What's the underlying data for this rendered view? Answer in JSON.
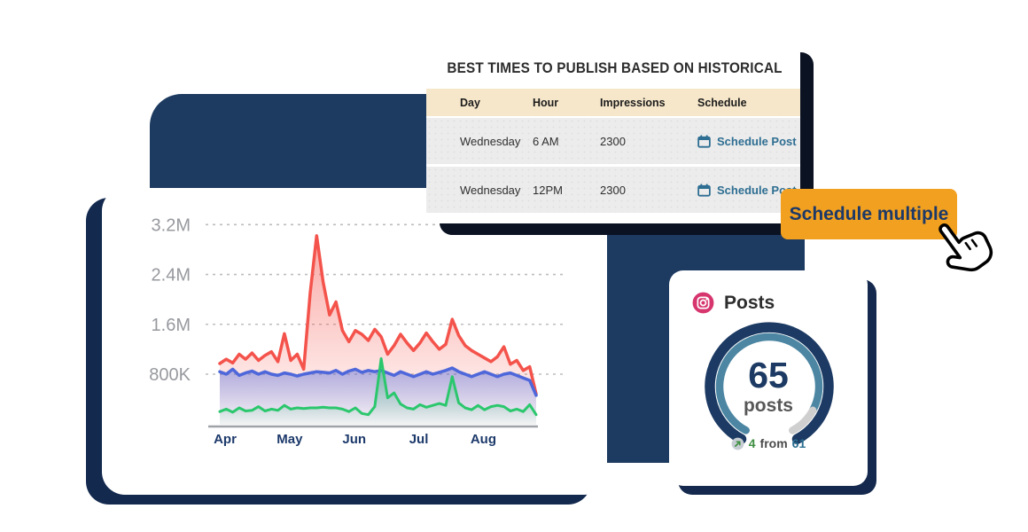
{
  "top_card": {
    "title": "BEST TIMES TO PUBLISH BASED ON HISTORICAL",
    "table": {
      "headers": [
        "Day",
        "Hour",
        "Impressions",
        "Schedule"
      ],
      "rows": [
        {
          "day": "Wednesday",
          "hour": "6 AM",
          "impressions": "2300",
          "action": "Schedule Post"
        },
        {
          "day": "Wednesday",
          "hour": "12PM",
          "impressions": "2300",
          "action": "Schedule Post"
        }
      ]
    }
  },
  "schedule_button": {
    "label": "Schedule multiple"
  },
  "posts_card": {
    "title": "Posts",
    "icon": "instagram-icon",
    "gauge": {
      "value": "65",
      "unit": "posts",
      "progress_ratio": 0.89
    },
    "stats": {
      "delta": "4",
      "connector": "from",
      "total": "61"
    }
  },
  "chart_data": {
    "type": "area",
    "unit": "impressions (millions)",
    "x_ticks": [
      "Apr",
      "May",
      "Jun",
      "Jul",
      "Aug"
    ],
    "y_ticks": [
      {
        "label": "3.2M",
        "value": 3.2
      },
      {
        "label": "2.4M",
        "value": 2.4
      },
      {
        "label": "1.6M",
        "value": 1.6
      },
      {
        "label": "800K",
        "value": 0.8
      }
    ],
    "ylim": [
      0,
      3.5
    ],
    "grid": true,
    "legend": false,
    "series": [
      {
        "name": "red-series",
        "color": "#f4534b",
        "fill_opacity": 0.5,
        "values": [
          0.97,
          1.04,
          0.98,
          1.12,
          1.04,
          1.14,
          1.02,
          1.1,
          1.16,
          1.0,
          1.45,
          1.02,
          1.12,
          0.88,
          2.1,
          3.02,
          2.28,
          1.75,
          1.96,
          1.5,
          1.32,
          1.5,
          1.44,
          1.34,
          1.52,
          1.4,
          1.12,
          1.26,
          1.44,
          1.3,
          1.18,
          1.3,
          1.46,
          1.32,
          1.2,
          1.28,
          1.68,
          1.42,
          1.26,
          1.18,
          1.12,
          1.06,
          1.0,
          1.08,
          1.24,
          0.96,
          1.02,
          0.86,
          0.92,
          0.48
        ]
      },
      {
        "name": "blue-series",
        "color": "#4e67da",
        "fill_opacity": 0.45,
        "values": [
          0.84,
          0.8,
          0.88,
          0.78,
          0.82,
          0.85,
          0.8,
          0.84,
          0.8,
          0.78,
          0.82,
          0.8,
          0.77,
          0.8,
          0.82,
          0.84,
          0.83,
          0.82,
          0.86,
          0.8,
          0.85,
          0.88,
          0.83,
          0.86,
          0.84,
          0.86,
          0.82,
          0.78,
          0.84,
          0.8,
          0.76,
          0.8,
          0.84,
          0.8,
          0.83,
          0.86,
          0.9,
          0.84,
          0.8,
          0.76,
          0.8,
          0.84,
          0.8,
          0.76,
          0.8,
          0.82,
          0.78,
          0.74,
          0.7,
          0.46
        ]
      },
      {
        "name": "green-series",
        "color": "#2bc76d",
        "fill_opacity": 0.42,
        "values": [
          0.2,
          0.24,
          0.19,
          0.26,
          0.21,
          0.22,
          0.28,
          0.21,
          0.24,
          0.22,
          0.3,
          0.24,
          0.26,
          0.25,
          0.26,
          0.26,
          0.27,
          0.26,
          0.26,
          0.24,
          0.2,
          0.26,
          0.17,
          0.15,
          0.28,
          1.05,
          0.42,
          0.5,
          0.32,
          0.26,
          0.24,
          0.31,
          0.27,
          0.3,
          0.33,
          0.3,
          0.76,
          0.34,
          0.26,
          0.23,
          0.3,
          0.23,
          0.28,
          0.3,
          0.28,
          0.21,
          0.24,
          0.2,
          0.31,
          0.15
        ]
      }
    ]
  },
  "colors": {
    "navy": "#1d3a60",
    "navy_deep": "#13294e",
    "shadow_dark": "#0b1222",
    "orange": "#f2a01f",
    "btn_text": "#1c3968",
    "teal_link": "#2e6e92",
    "beige": "#f6e7ca",
    "row_gray": "#ececec",
    "gauge_navy": "#1c3a63",
    "gauge_teal": "#4c86a2",
    "gauge_gray": "#cfcfcf",
    "stat_green": "#3e8e41",
    "stat_teal": "#2c6f91"
  }
}
